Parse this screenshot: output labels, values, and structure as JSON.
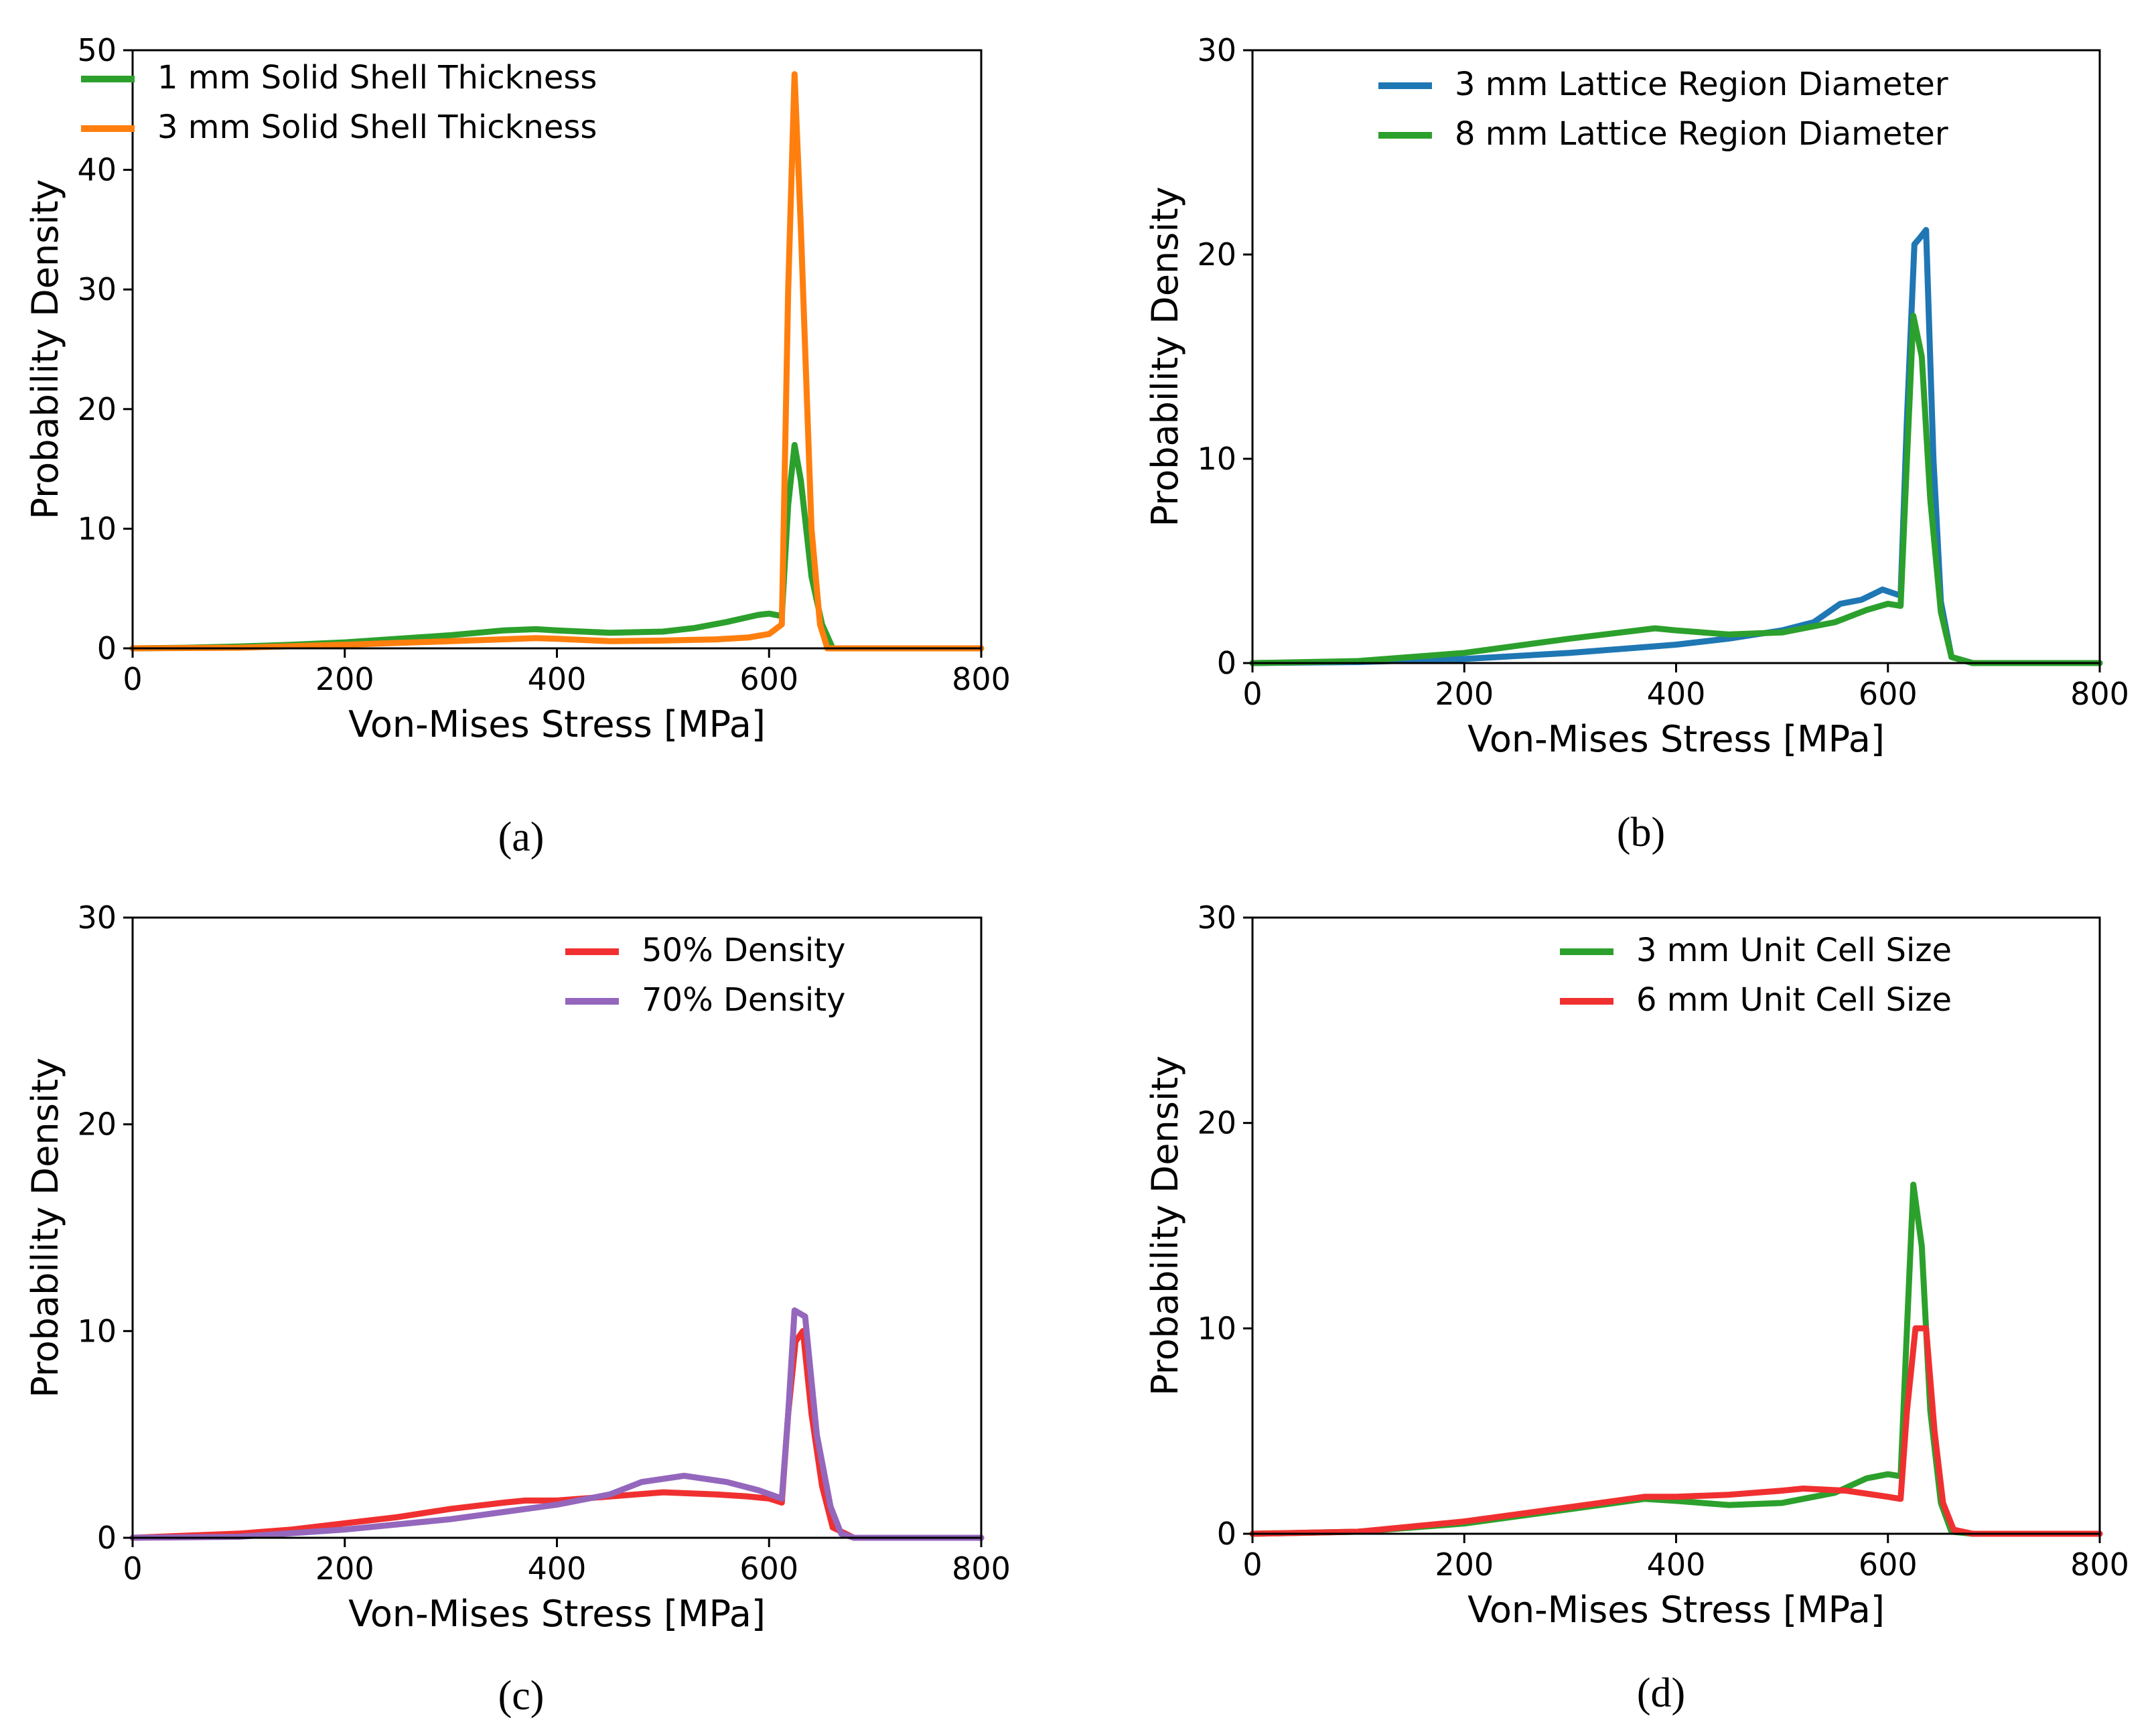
{
  "chart_data": [
    {
      "type": "line",
      "panel_label": "(a)",
      "xlabel": "Von-Mises Stress [MPa]",
      "ylabel": "Probability Density",
      "xlim": [
        0,
        800
      ],
      "ylim": [
        0,
        50
      ],
      "xticks": [
        0,
        200,
        400,
        600,
        800
      ],
      "yticks": [
        0,
        10,
        20,
        30,
        40,
        50
      ],
      "legend_position": "top-left",
      "series": [
        {
          "name": "1 mm Solid Shell Thickness",
          "color": "#2ca02c",
          "x": [
            0,
            50,
            100,
            150,
            200,
            250,
            300,
            350,
            380,
            400,
            450,
            500,
            530,
            560,
            590,
            600,
            612,
            618,
            624,
            630,
            640,
            650,
            660,
            700,
            800
          ],
          "y": [
            0,
            0.05,
            0.15,
            0.3,
            0.5,
            0.8,
            1.1,
            1.5,
            1.6,
            1.5,
            1.3,
            1.4,
            1.7,
            2.2,
            2.8,
            2.9,
            2.7,
            12,
            17,
            14,
            6,
            2,
            0,
            0,
            0
          ]
        },
        {
          "name": "3 mm Solid Shell Thickness",
          "color": "#ff7f0e",
          "x": [
            0,
            100,
            200,
            300,
            380,
            400,
            450,
            500,
            550,
            580,
            600,
            612,
            618,
            624,
            630,
            640,
            648,
            655,
            670,
            700,
            800
          ],
          "y": [
            0,
            0.05,
            0.3,
            0.6,
            0.85,
            0.8,
            0.6,
            0.65,
            0.75,
            0.9,
            1.2,
            2,
            30,
            48,
            35,
            10,
            2,
            0,
            0,
            0,
            0
          ]
        }
      ]
    },
    {
      "type": "line",
      "panel_label": "(b)",
      "xlabel": "Von-Mises Stress [MPa]",
      "ylabel": "Probability Density",
      "xlim": [
        0,
        800
      ],
      "ylim": [
        0,
        30
      ],
      "xticks": [
        0,
        200,
        400,
        600,
        800
      ],
      "yticks": [
        0,
        10,
        20,
        30
      ],
      "legend_position": "top-right",
      "series": [
        {
          "name": "3 mm Lattice Region Diameter",
          "color": "#1f77b4",
          "x": [
            0,
            100,
            200,
            300,
            400,
            450,
            500,
            530,
            555,
            575,
            595,
            612,
            618,
            625,
            630,
            636,
            643,
            650,
            660,
            680,
            800
          ],
          "y": [
            0,
            0.05,
            0.2,
            0.5,
            0.9,
            1.2,
            1.6,
            2.0,
            2.9,
            3.1,
            3.6,
            3.3,
            12,
            20.5,
            20.8,
            21.2,
            10,
            3,
            0.3,
            0,
            0
          ]
        },
        {
          "name": "8 mm Lattice Region Diameter",
          "color": "#2ca02c",
          "x": [
            0,
            100,
            200,
            300,
            380,
            400,
            450,
            500,
            550,
            580,
            600,
            612,
            618,
            624,
            632,
            640,
            650,
            660,
            680,
            800
          ],
          "y": [
            0,
            0.1,
            0.5,
            1.2,
            1.7,
            1.6,
            1.4,
            1.5,
            2.0,
            2.6,
            2.9,
            2.8,
            10,
            17,
            15,
            8,
            2.5,
            0.3,
            0,
            0
          ]
        }
      ]
    },
    {
      "type": "line",
      "panel_label": "(c)",
      "xlabel": "Von-Mises Stress [MPa]",
      "ylabel": "Probability Density",
      "xlim": [
        0,
        800
      ],
      "ylim": [
        0,
        30
      ],
      "xticks": [
        0,
        200,
        400,
        600,
        800
      ],
      "yticks": [
        0,
        10,
        20,
        30
      ],
      "legend_position": "top-right",
      "series": [
        {
          "name": "50% Density",
          "color": "#f03030",
          "x": [
            0,
            100,
            150,
            200,
            250,
            300,
            350,
            370,
            400,
            450,
            500,
            550,
            580,
            600,
            612,
            618,
            625,
            632,
            640,
            650,
            660,
            680,
            800
          ],
          "y": [
            0,
            0.2,
            0.4,
            0.7,
            1.0,
            1.4,
            1.7,
            1.8,
            1.8,
            2.0,
            2.2,
            2.1,
            2.0,
            1.9,
            1.7,
            6,
            9.5,
            10,
            6,
            2.5,
            0.5,
            0,
            0
          ]
        },
        {
          "name": "70% Density",
          "color": "#9467bd",
          "x": [
            0,
            100,
            200,
            300,
            400,
            450,
            480,
            520,
            560,
            590,
            612,
            618,
            624,
            634,
            645,
            658,
            668,
            680,
            800
          ],
          "y": [
            0,
            0.05,
            0.4,
            0.9,
            1.6,
            2.1,
            2.7,
            3.0,
            2.7,
            2.3,
            1.9,
            6,
            11,
            10.7,
            5,
            1.5,
            0.2,
            0,
            0
          ]
        }
      ]
    },
    {
      "type": "line",
      "panel_label": "(d)",
      "xlabel": "Von-Mises Stress [MPa]",
      "ylabel": "Probability Density",
      "xlim": [
        0,
        800
      ],
      "ylim": [
        0,
        30
      ],
      "xticks": [
        0,
        200,
        400,
        600,
        800
      ],
      "yticks": [
        0,
        10,
        20,
        30
      ],
      "legend_position": "top-right",
      "series": [
        {
          "name": "3 mm Unit Cell Size",
          "color": "#2ca02c",
          "x": [
            0,
            100,
            200,
            300,
            370,
            400,
            450,
            500,
            550,
            580,
            600,
            612,
            618,
            624,
            632,
            640,
            650,
            660,
            680,
            800
          ],
          "y": [
            0,
            0.1,
            0.5,
            1.2,
            1.7,
            1.6,
            1.4,
            1.5,
            2.0,
            2.7,
            2.9,
            2.8,
            10,
            17,
            14,
            6,
            1.5,
            0.1,
            0,
            0
          ]
        },
        {
          "name": "6 mm Unit Cell Size",
          "color": "#f03030",
          "x": [
            0,
            100,
            200,
            300,
            370,
            400,
            450,
            500,
            520,
            560,
            600,
            612,
            618,
            626,
            636,
            644,
            652,
            662,
            680,
            800
          ],
          "y": [
            0,
            0.1,
            0.6,
            1.3,
            1.8,
            1.8,
            1.9,
            2.1,
            2.2,
            2.1,
            1.8,
            1.7,
            6,
            10,
            10,
            5,
            1.5,
            0.2,
            0,
            0
          ]
        }
      ]
    }
  ]
}
